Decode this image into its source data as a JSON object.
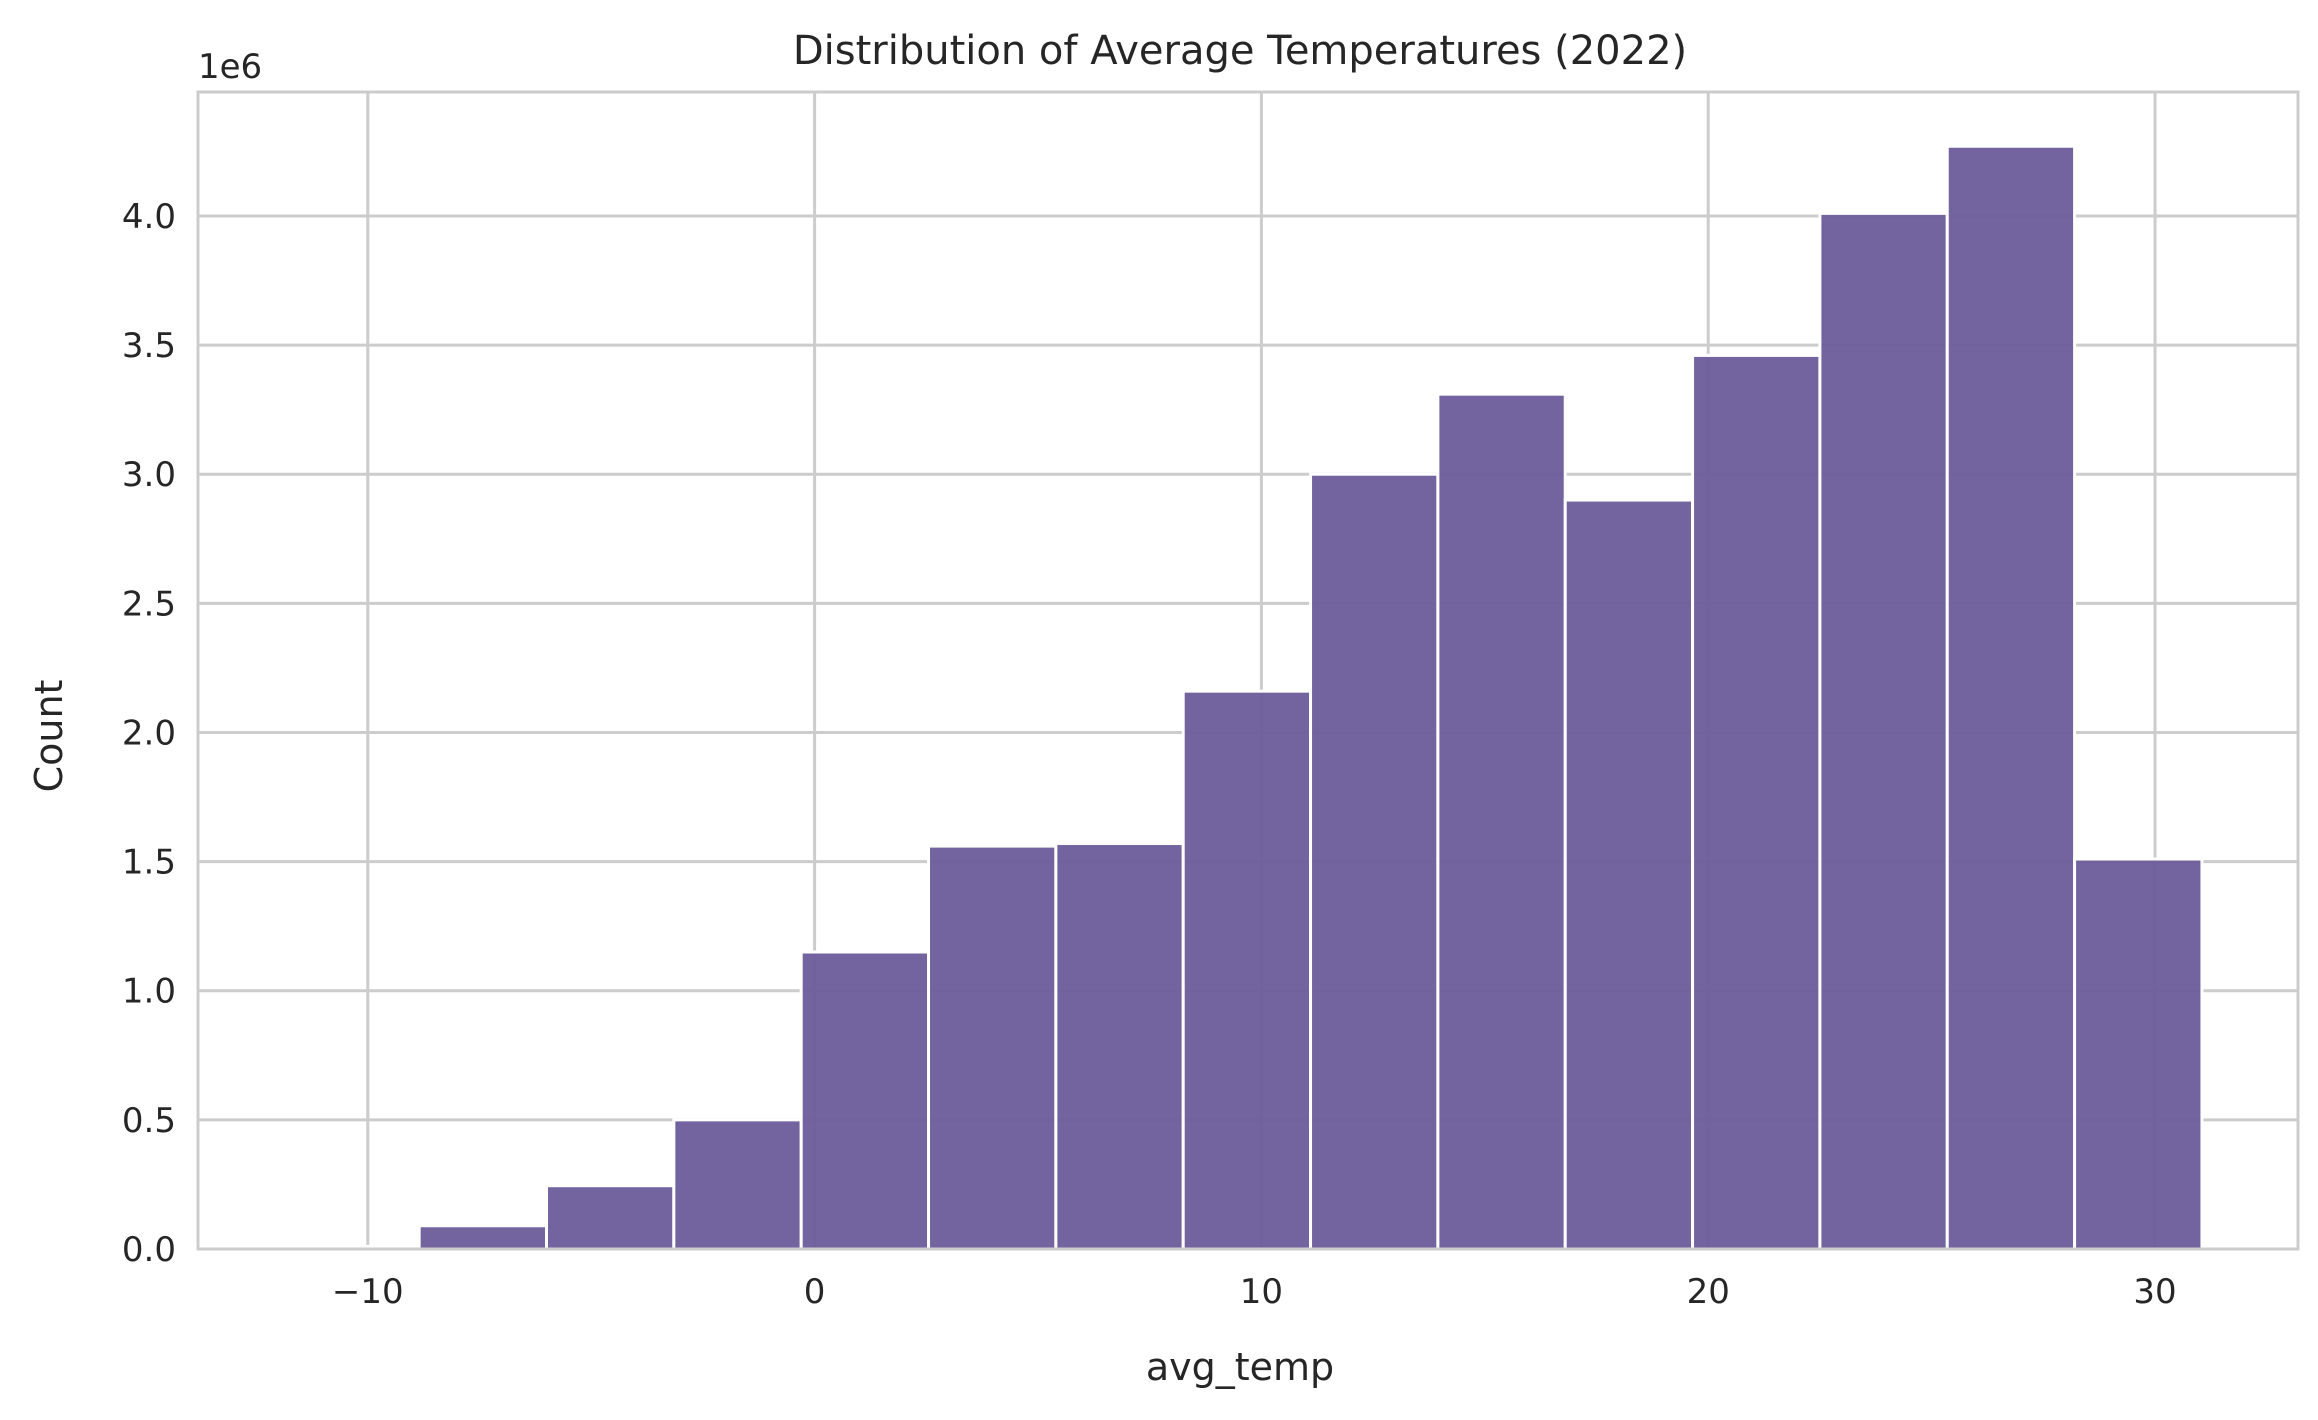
{
  "chart_data": {
    "type": "bar",
    "title": "Distribution of Average Temperatures (2022)",
    "xlabel": "avg_temp",
    "ylabel": "Count",
    "y_exponent_label": "1e6",
    "xlim": [
      -13.8,
      33.2
    ],
    "ylim": [
      0,
      4.48
    ],
    "xticks": [
      -10,
      0,
      10,
      20,
      30
    ],
    "xtick_labels": [
      "−10",
      "0",
      "10",
      "20",
      "30"
    ],
    "yticks": [
      0,
      0.5,
      1.0,
      1.5,
      2.0,
      2.5,
      3.0,
      3.5,
      4.0
    ],
    "ytick_labels": [
      "0.0",
      "0.5",
      "1.0",
      "1.5",
      "2.0",
      "2.5",
      "3.0",
      "3.5",
      "4.0"
    ],
    "grid": true,
    "bar_color": "#6b5b9a",
    "bins": [
      {
        "start": -11.7,
        "end": -8.85,
        "value": 0.01
      },
      {
        "start": -8.85,
        "end": -6.0,
        "value": 0.09
      },
      {
        "start": -6.0,
        "end": -3.15,
        "value": 0.245
      },
      {
        "start": -3.15,
        "end": -0.3,
        "value": 0.5
      },
      {
        "start": -0.3,
        "end": 2.55,
        "value": 1.15
      },
      {
        "start": 2.55,
        "end": 5.4,
        "value": 1.56
      },
      {
        "start": 5.4,
        "end": 8.25,
        "value": 1.57
      },
      {
        "start": 8.25,
        "end": 11.1,
        "value": 2.16
      },
      {
        "start": 11.1,
        "end": 13.95,
        "value": 3.0
      },
      {
        "start": 13.95,
        "end": 16.8,
        "value": 3.31
      },
      {
        "start": 16.8,
        "end": 19.65,
        "value": 2.9
      },
      {
        "start": 19.65,
        "end": 22.5,
        "value": 3.46
      },
      {
        "start": 22.5,
        "end": 25.35,
        "value": 4.01
      },
      {
        "start": 25.35,
        "end": 28.2,
        "value": 4.27
      },
      {
        "start": 28.2,
        "end": 31.05,
        "value": 1.51
      }
    ]
  }
}
